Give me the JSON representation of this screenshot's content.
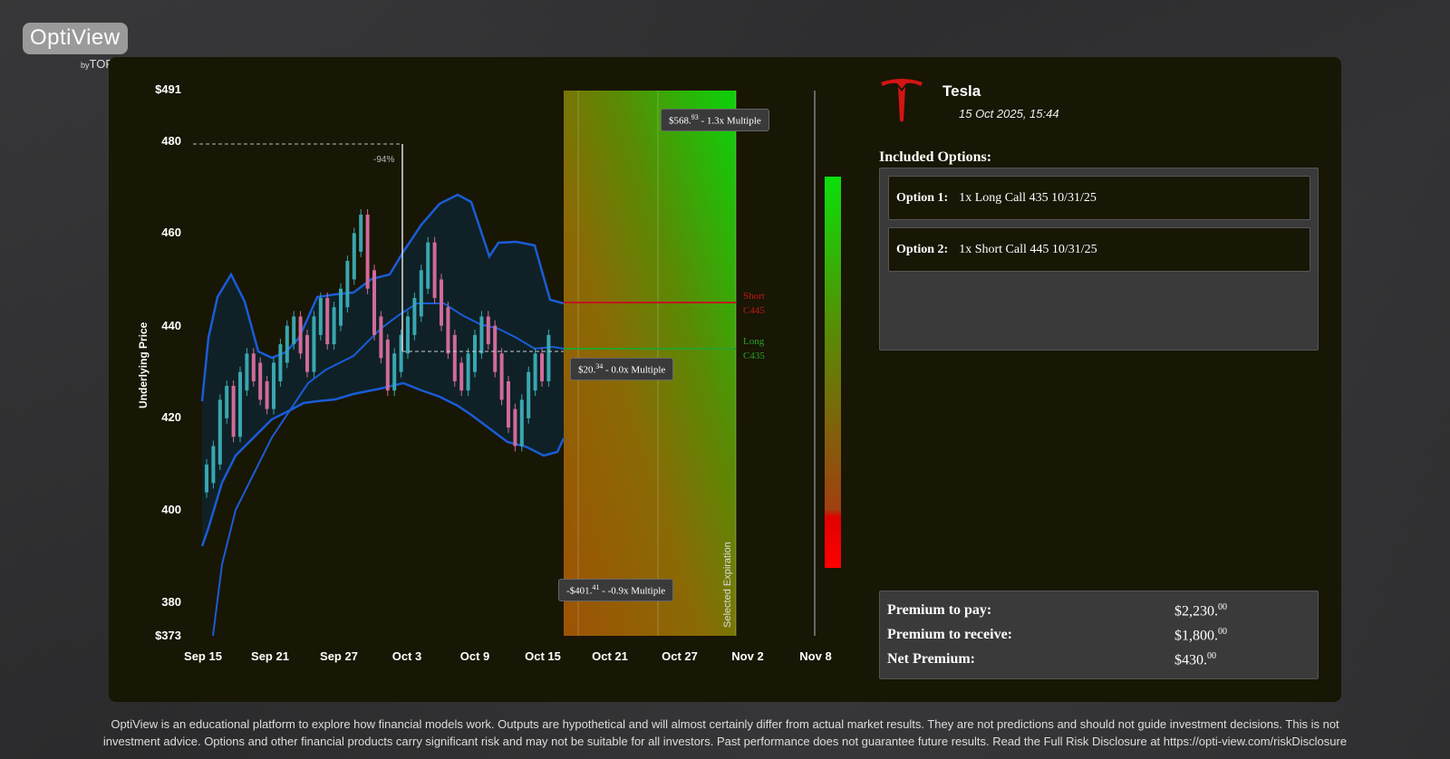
{
  "brand": {
    "name": "OptiView",
    "by_prefix": "by",
    "by_name": "TORR.O"
  },
  "company": {
    "name": "Tesla",
    "datetime": "15 Oct 2025, 15:44"
  },
  "options": {
    "title": "Included Options:",
    "items": [
      {
        "key": "Option 1:",
        "value": "1x Long Call 435 10/31/25"
      },
      {
        "key": "Option 2:",
        "value": "1x Short Call 445 10/31/25"
      }
    ]
  },
  "premiums": [
    {
      "label": "Premium to pay:",
      "value": "$2,230.",
      "cents": "00"
    },
    {
      "label": "Premium to receive:",
      "value": "$1,800.",
      "cents": "00"
    },
    {
      "label": "Net Premium:",
      "value": "$430.",
      "cents": "00"
    }
  ],
  "tooltips": {
    "top": {
      "main": "$568.",
      "cents": "93",
      "rest": " - 1.3x Multiple"
    },
    "mid": {
      "main": "$20.",
      "cents": "34",
      "rest": " - 0.0x Multiple"
    },
    "bottom": {
      "main": "-$401.",
      "cents": "41",
      "rest": " - -0.9x Multiple"
    }
  },
  "disclaimer": {
    "line1": "OptiView is an educational platform to explore how financial models work. Outputs are hypothetical and will almost certainly differ from actual market results. They are not predictions and should not guide investment decisions. This is not",
    "line2": "investment advice. Options and other financial products carry significant risk and may not be suitable for all investors. Past performance does not guarantee future results. Read the Full Risk Disclosure at https://opti-view.com/riskDisclosure"
  },
  "chart_data": {
    "type": "line",
    "ylabel": "Underlying Price",
    "ylim": [
      373,
      491
    ],
    "y_ticks": [
      "$491",
      "480",
      "460",
      "440",
      "420",
      "400",
      "380",
      "$373"
    ],
    "x_ticks": [
      "Sep 15",
      "Sep 21",
      "Sep 27",
      "Oct 3",
      "Oct 9",
      "Oct 15",
      "Oct 21",
      "Oct 27",
      "Nov 2",
      "Nov 8"
    ],
    "strike_lines": [
      {
        "label1": "Short",
        "label2": "C445",
        "value": 445,
        "color": "#c0181a"
      },
      {
        "label1": "Long",
        "label2": "C435",
        "value": 435,
        "color": "#2aa02a"
      }
    ],
    "high_annotation": "-94%",
    "selected_expiration": "Selected Expiration",
    "colors": {
      "band": "#1a5cd6",
      "up": "#3aa6b0",
      "down": "#d06a9a",
      "profit": "#0ad30a",
      "loss": "#e10000"
    }
  }
}
